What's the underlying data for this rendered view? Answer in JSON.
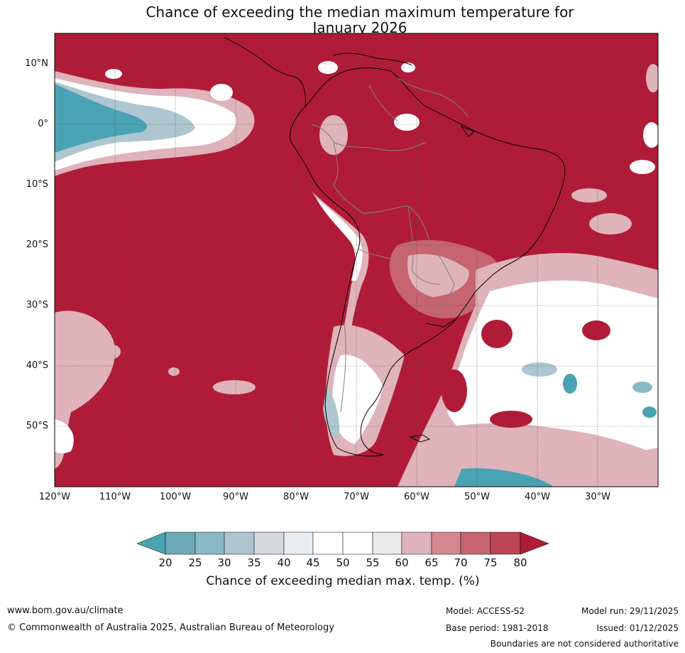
{
  "title": {
    "line1": "Chance of exceeding the median maximum temperature for",
    "line2": "January 2026"
  },
  "axes": {
    "latitude_labels": [
      "10°N",
      "0°",
      "10°S",
      "20°S",
      "30°S",
      "40°S",
      "50°S"
    ],
    "longitude_labels": [
      "120°W",
      "110°W",
      "100°W",
      "90°W",
      "80°W",
      "70°W",
      "60°W",
      "50°W",
      "40°W",
      "30°W"
    ]
  },
  "legend": {
    "ticks": [
      "20",
      "25",
      "30",
      "35",
      "40",
      "45",
      "50",
      "55",
      "60",
      "65",
      "70",
      "75",
      "80"
    ],
    "colors": [
      "#4aa3b4",
      "#6caab8",
      "#8ab9c6",
      "#adc6cf",
      "#d4d9dc",
      "#e8eff2",
      "#ffffff",
      "#ffffff",
      "#ebe9ea",
      "#dfb3ba",
      "#d38891",
      "#c66470",
      "#bd4655",
      "#b01c38"
    ],
    "label": "Chance of exceeding median max. temp. (%)"
  },
  "colors": {
    "high": "#b01c38",
    "low": "#4aa3b4",
    "coast": "#000000",
    "border": "#808080"
  },
  "footer": {
    "website": "www.bom.gov.au/climate",
    "copyright": "© Commonwealth of Australia 2025, Australian Bureau of Meteorology",
    "model": "Model: ACCESS-S2",
    "base_period": "Base period: 1981-2018",
    "model_run": "Model run: 29/11/2025",
    "issued": "Issued: 01/12/2025",
    "disclaimer": "Boundaries are not considered authoritative"
  }
}
